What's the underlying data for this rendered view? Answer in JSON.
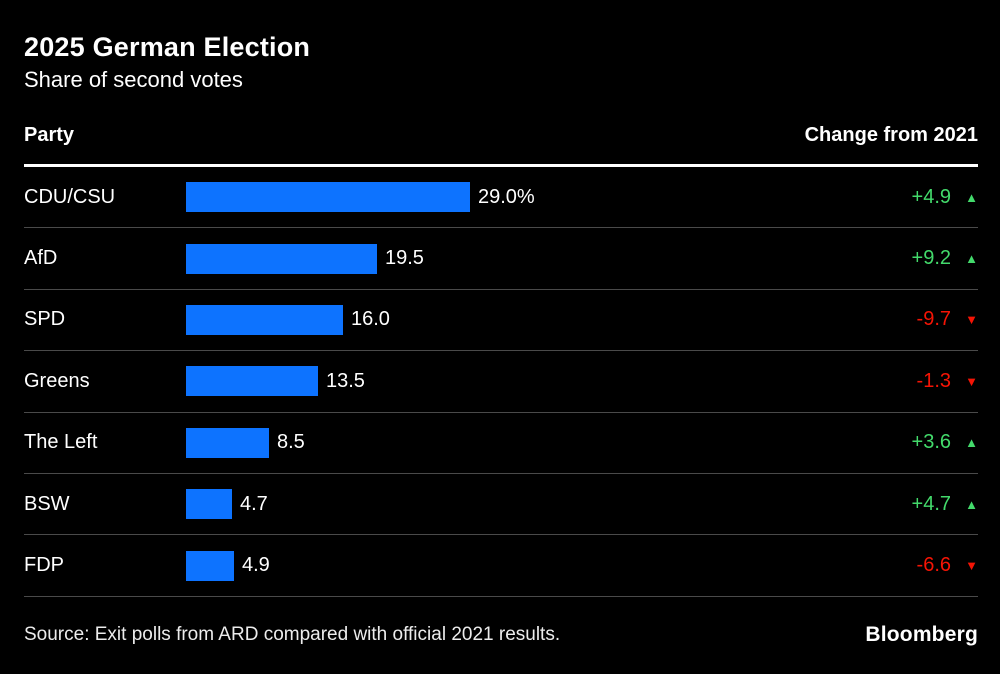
{
  "chart": {
    "title": "2025 German Election",
    "subtitle": "Share of second votes",
    "col_party": "Party",
    "col_change": "Change from 2021",
    "source": "Source: Exit polls from ARD compared with official 2021 results.",
    "brand": "Bloomberg",
    "icons": {
      "up": "▲",
      "down": "▼"
    },
    "colors": {
      "background": "#000000",
      "bar": "#0d73ff",
      "up": "#43da6b",
      "down": "#f51405",
      "separator": "#4a4a4a",
      "header_rule": "#ffffff"
    },
    "rows": [
      {
        "party": "CDU/CSU",
        "value": 29.0,
        "value_label": "29.0%",
        "change": "+4.9",
        "direction": "up"
      },
      {
        "party": "AfD",
        "value": 19.5,
        "value_label": "19.5",
        "change": "+9.2",
        "direction": "up"
      },
      {
        "party": "SPD",
        "value": 16.0,
        "value_label": "16.0",
        "change": "-9.7",
        "direction": "down"
      },
      {
        "party": "Greens",
        "value": 13.5,
        "value_label": "13.5",
        "change": "-1.3",
        "direction": "down"
      },
      {
        "party": "The Left",
        "value": 8.5,
        "value_label": "8.5",
        "change": "+3.6",
        "direction": "up"
      },
      {
        "party": "BSW",
        "value": 4.7,
        "value_label": "4.7",
        "change": "+4.7",
        "direction": "up"
      },
      {
        "party": "FDP",
        "value": 4.9,
        "value_label": "4.9",
        "change": "-6.6",
        "direction": "down"
      }
    ]
  },
  "chart_data": {
    "type": "bar",
    "orientation": "horizontal",
    "title": "2025 German Election",
    "subtitle": "Share of second votes",
    "categories": [
      "CDU/CSU",
      "AfD",
      "SPD",
      "Greens",
      "The Left",
      "BSW",
      "FDP"
    ],
    "series": [
      {
        "name": "Share of second votes (%)",
        "values": [
          29.0,
          19.5,
          16.0,
          13.5,
          8.5,
          4.7,
          4.9
        ]
      },
      {
        "name": "Change from 2021 (percentage points)",
        "values": [
          4.9,
          9.2,
          -9.7,
          -1.3,
          3.6,
          4.7,
          -6.6
        ]
      }
    ],
    "xlabel": "",
    "ylabel": "Party",
    "xlim": [
      0,
      30
    ],
    "grid": false,
    "legend_position": "none",
    "value_labels_shown": true,
    "source": "Source: Exit polls from ARD compared with official 2021 results."
  }
}
